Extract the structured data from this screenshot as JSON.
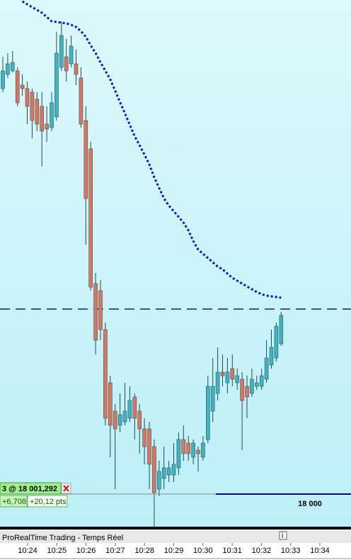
{
  "chart_data": {
    "type": "candlestick",
    "ylim": [
      17995.2,
      18069.7
    ],
    "up_color": "#3fb3c4",
    "down_color": "#e0735c",
    "open": [
      18057.2,
      18059.2,
      18059.7,
      18059.7,
      18057.7,
      18057.2,
      18056.7,
      18055.7,
      18054.7,
      18052.2,
      18051.7,
      18053.2,
      18060.2,
      18061.7,
      18060.7,
      18060.7,
      18058.7,
      18052.7,
      18048.7,
      18029.7,
      18028.7,
      18023.2,
      18015.7,
      18011.7,
      18009.7,
      18010.2,
      18010.7,
      18013.7,
      18011.7,
      18009.2,
      18009.2,
      18006.7,
      18000.7,
      18002.2,
      18002.7,
      18002.7,
      18003.7,
      18007.7,
      18007.2,
      18005.2,
      18006.2,
      18005.2,
      18007.7,
      18011.7,
      18014.2,
      18017.2,
      18015.7,
      18017.7,
      18015.7,
      18016.2,
      18015.2,
      18014.2,
      18015.2,
      18015.2,
      18016.2,
      18018.2,
      18019.2,
      18021.2
    ],
    "high": [
      18061.7,
      18062.2,
      18062.5,
      18060.2,
      18059.2,
      18058.2,
      18057.2,
      18056.7,
      18056.7,
      18054.7,
      18056.7,
      18065.2,
      18066.7,
      18064.2,
      18064.7,
      18062.7,
      18060.2,
      18054.7,
      18049.7,
      18031.2,
      18030.2,
      18024.2,
      18016.7,
      18012.7,
      18014.2,
      18015.7,
      18015.2,
      18014.2,
      18012.7,
      18010.7,
      18010.2,
      18007.7,
      18004.7,
      18006.7,
      18004.7,
      18007.2,
      18008.7,
      18009.7,
      18008.2,
      18007.7,
      18006.7,
      18008.2,
      18016.7,
      18019.2,
      18020.7,
      18019.7,
      18019.2,
      18019.7,
      18017.7,
      18017.2,
      18016.7,
      18017.7,
      18016.7,
      18017.7,
      18021.7,
      18023.2,
      18024.2,
      18025.7
    ],
    "low": [
      18056.7,
      18058.7,
      18059.5,
      18054.7,
      18056.2,
      18052.2,
      18050.2,
      18051.2,
      18046.2,
      18049.7,
      18051.2,
      18052.7,
      18059.7,
      18058.2,
      18060.2,
      18057.7,
      18051.7,
      18035.2,
      18028.7,
      18019.7,
      18021.7,
      18009.7,
      18005.2,
      18000.7,
      18008.7,
      18009.7,
      18010.2,
      18007.7,
      18005.7,
      18004.2,
      18000.7,
      17995.2,
      17999.7,
      18000.7,
      18001.7,
      18001.7,
      18002.7,
      18004.7,
      18004.7,
      18004.2,
      18003.2,
      18004.7,
      18007.2,
      18010.2,
      18013.2,
      18015.2,
      18014.2,
      18015.2,
      18014.7,
      18006.2,
      18010.7,
      18013.7,
      18014.7,
      18014.7,
      18015.7,
      18017.7,
      18018.7,
      18020.9
    ],
    "close": [
      18059.7,
      18060.7,
      18060.9,
      18055.2,
      18057.2,
      18054.7,
      18052.7,
      18052.2,
      18051.2,
      18051.5,
      18055.2,
      18062.2,
      18064.7,
      18059.7,
      18063.2,
      18059.2,
      18052.2,
      18041.7,
      18029.2,
      18021.7,
      18023.2,
      18010.7,
      18009.7,
      18009.2,
      18011.2,
      18011.7,
      18013.2,
      18010.7,
      18009.2,
      18006.7,
      18004.2,
      18000.2,
      18003.2,
      18003.7,
      18003.7,
      18004.2,
      18007.7,
      18005.7,
      18005.7,
      18007.2,
      18005.7,
      18007.2,
      18015.2,
      18015.2,
      18017.2,
      18016.7,
      18017.2,
      18016.2,
      18016.7,
      18013.2,
      18013.7,
      18016.2,
      18015.7,
      18016.7,
      18019.2,
      18020.7,
      18023.7,
      18025.2
    ],
    "average": {
      "color": "#0a14c8",
      "values": [
        null,
        null,
        null,
        null,
        18069.5,
        18069.1,
        18068.7,
        18068.3,
        18067.9,
        18067.3,
        18066.7,
        18066.6,
        18066.5,
        18066.4,
        18066.2,
        18065.9,
        18065.3,
        18064.5,
        18063.3,
        18062.2,
        18060.9,
        18059.7,
        18058.5,
        18056.9,
        18055.3,
        18053.7,
        18052.1,
        18050.5,
        18049.2,
        18047.9,
        18046.5,
        18044.7,
        18043.2,
        18041.7,
        18040.7,
        18039.9,
        18039.1,
        18038.3,
        18037.2,
        18035.7,
        18034.5,
        18033.9,
        18033.3,
        18032.7,
        18032.1,
        18031.7,
        18031.1,
        18030.5,
        18030.1,
        18029.7,
        18029.3,
        18028.9,
        18028.5,
        18028.2,
        18028.0,
        18027.9,
        18027.8,
        18027.7
      ]
    },
    "dashed_level": {
      "value": 18026.1,
      "color": "#1a1a9a"
    },
    "level": {
      "value": 18000,
      "label": "18 000",
      "color": "#00008b"
    },
    "position": {
      "label": "3 @ 18 001,292",
      "pnl": "+6,708",
      "points": "+20,12",
      "unit": "pts"
    },
    "time_labels": [
      "10:24",
      "10:25",
      "10:26",
      "10:27",
      "10:28",
      "10:29",
      "10:30",
      "10:31",
      "10:32",
      "10:33",
      "10:34"
    ],
    "footer": "ProRealTime Trading - Temps Réel"
  }
}
